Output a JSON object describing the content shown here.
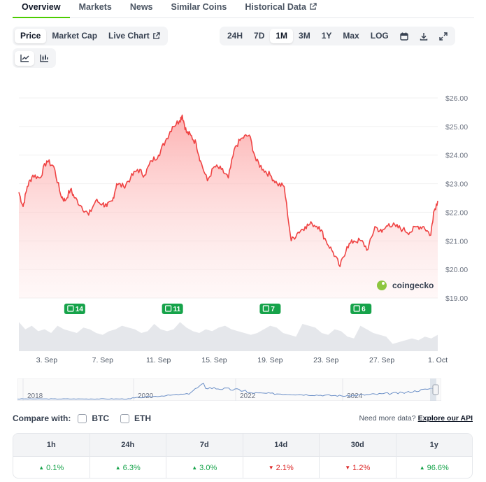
{
  "tabs": [
    "Overview",
    "Markets",
    "News",
    "Similar Coins",
    "Historical Data"
  ],
  "active_tab": "Overview",
  "chart_types": [
    "Price",
    "Market Cap",
    "Live Chart"
  ],
  "active_chart_type": "Price",
  "ranges": [
    "24H",
    "7D",
    "1M",
    "3M",
    "1Y",
    "Max",
    "LOG"
  ],
  "active_range": "1M",
  "tool_icons": [
    "calendar-icon",
    "download-icon",
    "expand-icon"
  ],
  "view_icons": [
    "line-chart-icon",
    "candlestick-chart-icon"
  ],
  "watermark": "coingecko",
  "events": [
    "14",
    "11",
    "7",
    "6"
  ],
  "navigator_years": [
    "2018",
    "2020",
    "2022",
    "2024"
  ],
  "colors": {
    "line": "#ef4444",
    "fill": "#fecaca",
    "accent": "#4bcc00",
    "event": "#16a34a",
    "volume": "#e5e7eb",
    "up": "#16a34a",
    "down": "#dc2626"
  },
  "compare": {
    "label": "Compare with:",
    "options": [
      "BTC",
      "ETH"
    ]
  },
  "api": {
    "text": "Need more data?",
    "link": "Explore our API"
  },
  "changes": [
    {
      "period": "1h",
      "value": "0.1%",
      "dir": "up"
    },
    {
      "period": "24h",
      "value": "6.3%",
      "dir": "up"
    },
    {
      "period": "7d",
      "value": "3.0%",
      "dir": "up"
    },
    {
      "period": "14d",
      "value": "2.1%",
      "dir": "down"
    },
    {
      "period": "30d",
      "value": "1.2%",
      "dir": "down"
    },
    {
      "period": "1y",
      "value": "96.6%",
      "dir": "up"
    }
  ],
  "chart_data": {
    "type": "area",
    "x_labels": [
      "3. Sep",
      "7. Sep",
      "11. Sep",
      "15. Sep",
      "19. Sep",
      "23. Sep",
      "27. Sep",
      "1. Oct"
    ],
    "y_ticks": [
      "$26.00",
      "$25.00",
      "$24.00",
      "$23.00",
      "$22.00",
      "$21.00",
      "$20.00",
      "$19.00"
    ],
    "ylim": [
      19,
      26
    ],
    "x_range_days": [
      1,
      31
    ],
    "series": [
      {
        "x": [
          1,
          1.3,
          1.6,
          2,
          2.5,
          3,
          3.5,
          4,
          4.3,
          4.7,
          5,
          5.5,
          6,
          6.5,
          7,
          7.3,
          7.7,
          8,
          8.5,
          9,
          9.5,
          10,
          10.5,
          11,
          11.5,
          12,
          12.5,
          12.7,
          13,
          13.3,
          13.7,
          14,
          14.5,
          15,
          15.5,
          16,
          16.5,
          17,
          17.5,
          18,
          18.5,
          19,
          19.5,
          20,
          20.5,
          21,
          21.5,
          22,
          22.5,
          23,
          23.5,
          24,
          24.5,
          25,
          25.5,
          26,
          26.5,
          27,
          27.5,
          28,
          28.5,
          29,
          29.5,
          30,
          30.5,
          30.7,
          31
        ],
        "values": [
          22.7,
          22.2,
          22.9,
          23.3,
          23.2,
          23.8,
          23.6,
          22.6,
          22.4,
          22.8,
          22.5,
          22.2,
          21.9,
          22.4,
          22.3,
          22.2,
          22.4,
          23.0,
          22.9,
          23.2,
          23.5,
          23.3,
          23.8,
          24.0,
          24.5,
          25.0,
          25.2,
          25.4,
          24.8,
          24.7,
          24.4,
          23.8,
          23.1,
          23.6,
          23.5,
          23.2,
          24.3,
          24.6,
          24.7,
          23.8,
          23.5,
          23.3,
          23.0,
          22.9,
          21.0,
          21.3,
          21.5,
          21.6,
          21.5,
          21.0,
          20.6,
          20.1,
          20.8,
          21.0,
          21.0,
          20.7,
          21.5,
          21.3,
          21.6,
          21.5,
          21.4,
          21.3,
          21.5,
          21.5,
          21.2,
          22.0,
          22.4
        ]
      }
    ],
    "volume": [
      0.8,
      0.6,
      0.7,
      0.55,
      0.6,
      0.5,
      0.7,
      0.6,
      0.55,
      0.5,
      0.65,
      0.6,
      0.5,
      0.45,
      0.55,
      0.6,
      0.7,
      0.65,
      0.6,
      0.5,
      0.55,
      0.75,
      0.6,
      0.55,
      0.6,
      0.8,
      0.65,
      0.55,
      0.5,
      0.6,
      0.55,
      0.65,
      0.7,
      0.6,
      0.55,
      0.5,
      0.45,
      0.5,
      0.6,
      0.7,
      0.65,
      0.5,
      0.45,
      0.4,
      0.75,
      0.7,
      0.65,
      0.5,
      0.45,
      0.6,
      0.55,
      0.4,
      0.35,
      0.7,
      0.6,
      0.5,
      0.45,
      0.4,
      0.2,
      0.25,
      0.3,
      0.35,
      0.3,
      0.4,
      0.35,
      0.45
    ]
  }
}
